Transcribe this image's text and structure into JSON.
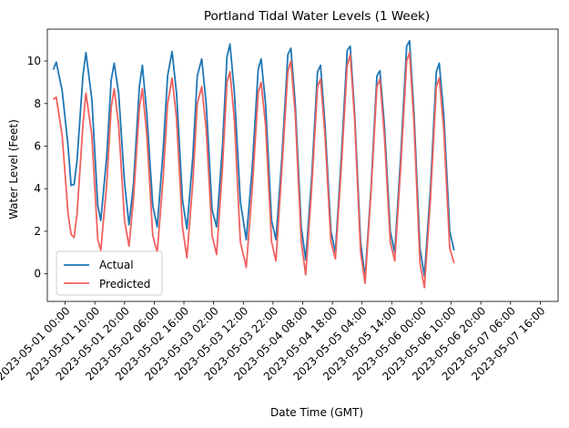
{
  "chart_data": {
    "type": "line",
    "title": "Portland Tidal Water Levels (1 Week)",
    "xlabel": "Date Time (GMT)",
    "ylabel": "Water Level (Feet)",
    "x_range": [
      "2023-04-30 18:00",
      "2023-05-07 22:00"
    ],
    "ylim": [
      -1.3,
      11.5
    ],
    "y_ticks": [
      0,
      2,
      4,
      6,
      8,
      10
    ],
    "x_ticks": [
      "2023-05-01 00:00",
      "2023-05-01 10:00",
      "2023-05-01 20:00",
      "2023-05-02 06:00",
      "2023-05-02 16:00",
      "2023-05-03 02:00",
      "2023-05-03 12:00",
      "2023-05-03 22:00",
      "2023-05-04 08:00",
      "2023-05-04 18:00",
      "2023-05-05 04:00",
      "2023-05-05 14:00",
      "2023-05-06 00:00",
      "2023-05-06 10:00",
      "2023-05-06 20:00",
      "2023-05-07 06:00",
      "2023-05-07 16:00"
    ],
    "grid": false,
    "legend": "lower-left",
    "series": [
      {
        "name": "Actual",
        "color": "#1f77b4",
        "points": [
          [
            "2023-04-30 20:00",
            9.6
          ],
          [
            "2023-04-30 21:00",
            9.95
          ],
          [
            "2023-04-30 23:00",
            8.6
          ],
          [
            "2023-05-01 01:00",
            6.0
          ],
          [
            "2023-05-01 02:00",
            4.15
          ],
          [
            "2023-05-01 03:00",
            4.2
          ],
          [
            "2023-05-01 04:00",
            5.3
          ],
          [
            "2023-05-01 06:00",
            9.3
          ],
          [
            "2023-05-01 07:00",
            10.4
          ],
          [
            "2023-05-01 09:00",
            8.2
          ],
          [
            "2023-05-01 11:00",
            3.2
          ],
          [
            "2023-05-01 12:00",
            2.5
          ],
          [
            "2023-05-01 14:00",
            5.5
          ],
          [
            "2023-05-01 15:30",
            9.1
          ],
          [
            "2023-05-01 16:30",
            9.9
          ],
          [
            "2023-05-01 18:00",
            8.5
          ],
          [
            "2023-05-01 20:00",
            4.3
          ],
          [
            "2023-05-01 21:30",
            2.3
          ],
          [
            "2023-05-01 23:00",
            4.2
          ],
          [
            "2023-05-02 01:00",
            8.8
          ],
          [
            "2023-05-02 02:00",
            9.8
          ],
          [
            "2023-05-02 03:30",
            7.5
          ],
          [
            "2023-05-02 05:30",
            3.2
          ],
          [
            "2023-05-02 07:00",
            2.2
          ],
          [
            "2023-05-02 09:00",
            5.8
          ],
          [
            "2023-05-02 10:30",
            9.3
          ],
          [
            "2023-05-02 12:00",
            10.45
          ],
          [
            "2023-05-02 13:30",
            8.5
          ],
          [
            "2023-05-02 15:30",
            3.5
          ],
          [
            "2023-05-02 17:00",
            2.1
          ],
          [
            "2023-05-02 19:00",
            5.5
          ],
          [
            "2023-05-02 20:30",
            9.3
          ],
          [
            "2023-05-02 22:00",
            10.1
          ],
          [
            "2023-05-02 23:30",
            8.0
          ],
          [
            "2023-05-03 01:30",
            3.0
          ],
          [
            "2023-05-03 03:00",
            2.2
          ],
          [
            "2023-05-03 05:00",
            6.0
          ],
          [
            "2023-05-03 06:30",
            10.2
          ],
          [
            "2023-05-03 07:30",
            10.8
          ],
          [
            "2023-05-03 09:00",
            8.5
          ],
          [
            "2023-05-03 11:00",
            3.4
          ],
          [
            "2023-05-03 13:00",
            1.6
          ],
          [
            "2023-05-03 15:00",
            5.0
          ],
          [
            "2023-05-03 17:00",
            9.6
          ],
          [
            "2023-05-03 18:00",
            10.1
          ],
          [
            "2023-05-03 19:30",
            8.0
          ],
          [
            "2023-05-03 21:30",
            2.5
          ],
          [
            "2023-05-03 23:00",
            1.6
          ],
          [
            "2023-05-04 01:00",
            5.5
          ],
          [
            "2023-05-04 03:00",
            10.3
          ],
          [
            "2023-05-04 04:00",
            10.6
          ],
          [
            "2023-05-04 05:30",
            8.0
          ],
          [
            "2023-05-04 07:30",
            2.2
          ],
          [
            "2023-05-04 09:00",
            0.65
          ],
          [
            "2023-05-04 11:00",
            4.5
          ],
          [
            "2023-05-04 13:00",
            9.5
          ],
          [
            "2023-05-04 14:00",
            9.8
          ],
          [
            "2023-05-04 15:30",
            7.0
          ],
          [
            "2023-05-04 17:30",
            2.0
          ],
          [
            "2023-05-04 19:00",
            1.0
          ],
          [
            "2023-05-04 21:00",
            5.5
          ],
          [
            "2023-05-04 23:00",
            10.5
          ],
          [
            "2023-05-05 00:00",
            10.7
          ],
          [
            "2023-05-05 01:30",
            7.5
          ],
          [
            "2023-05-05 03:30",
            1.5
          ],
          [
            "2023-05-05 05:00",
            -0.2
          ],
          [
            "2023-05-05 07:00",
            4.0
          ],
          [
            "2023-05-05 09:00",
            9.3
          ],
          [
            "2023-05-05 10:00",
            9.55
          ],
          [
            "2023-05-05 11:30",
            7.0
          ],
          [
            "2023-05-05 13:30",
            2.0
          ],
          [
            "2023-05-05 15:00",
            1.0
          ],
          [
            "2023-05-05 17:00",
            5.5
          ],
          [
            "2023-05-05 19:00",
            10.7
          ],
          [
            "2023-05-05 20:00",
            10.95
          ],
          [
            "2023-05-05 21:30",
            7.5
          ],
          [
            "2023-05-05 23:30",
            1.2
          ],
          [
            "2023-05-06 01:00",
            -0.1
          ],
          [
            "2023-05-06 03:00",
            4.0
          ],
          [
            "2023-05-06 05:00",
            9.5
          ],
          [
            "2023-05-06 06:00",
            9.9
          ],
          [
            "2023-05-06 07:30",
            7.5
          ],
          [
            "2023-05-06 09:30",
            2.0
          ],
          [
            "2023-05-06 11:00",
            1.1
          ]
        ]
      },
      {
        "name": "Predicted",
        "color": "#f0625e",
        "points": [
          [
            "2023-04-30 20:00",
            8.2
          ],
          [
            "2023-04-30 21:00",
            8.3
          ],
          [
            "2023-04-30 23:00",
            6.5
          ],
          [
            "2023-05-01 01:00",
            2.8
          ],
          [
            "2023-05-01 02:00",
            1.85
          ],
          [
            "2023-05-01 03:00",
            1.7
          ],
          [
            "2023-05-01 04:00",
            2.8
          ],
          [
            "2023-05-01 06:00",
            7.0
          ],
          [
            "2023-05-01 07:00",
            8.5
          ],
          [
            "2023-05-01 09:00",
            6.5
          ],
          [
            "2023-05-01 11:00",
            1.6
          ],
          [
            "2023-05-01 12:00",
            1.1
          ],
          [
            "2023-05-01 14:00",
            4.2
          ],
          [
            "2023-05-01 15:30",
            7.8
          ],
          [
            "2023-05-01 16:30",
            8.7
          ],
          [
            "2023-05-01 18:00",
            7.0
          ],
          [
            "2023-05-01 20:00",
            2.5
          ],
          [
            "2023-05-01 21:30",
            1.3
          ],
          [
            "2023-05-01 23:00",
            3.5
          ],
          [
            "2023-05-02 01:00",
            7.8
          ],
          [
            "2023-05-02 02:00",
            8.7
          ],
          [
            "2023-05-02 03:30",
            6.5
          ],
          [
            "2023-05-02 05:30",
            1.8
          ],
          [
            "2023-05-02 07:00",
            1.0
          ],
          [
            "2023-05-02 09:00",
            4.5
          ],
          [
            "2023-05-02 10:30",
            8.0
          ],
          [
            "2023-05-02 12:00",
            9.2
          ],
          [
            "2023-05-02 13:30",
            7.3
          ],
          [
            "2023-05-02 15:30",
            2.2
          ],
          [
            "2023-05-02 17:00",
            0.75
          ],
          [
            "2023-05-02 19:00",
            4.3
          ],
          [
            "2023-05-02 20:30",
            8.0
          ],
          [
            "2023-05-02 22:00",
            8.8
          ],
          [
            "2023-05-02 23:30",
            6.8
          ],
          [
            "2023-05-03 01:30",
            1.8
          ],
          [
            "2023-05-03 03:00",
            0.9
          ],
          [
            "2023-05-03 05:00",
            5.0
          ],
          [
            "2023-05-03 06:30",
            9.0
          ],
          [
            "2023-05-03 07:30",
            9.5
          ],
          [
            "2023-05-03 09:00",
            7.2
          ],
          [
            "2023-05-03 11:00",
            1.5
          ],
          [
            "2023-05-03 13:00",
            0.3
          ],
          [
            "2023-05-03 15:00",
            4.0
          ],
          [
            "2023-05-03 17:00",
            8.5
          ],
          [
            "2023-05-03 18:00",
            9.0
          ],
          [
            "2023-05-03 19:30",
            7.0
          ],
          [
            "2023-05-03 21:30",
            1.5
          ],
          [
            "2023-05-03 23:00",
            0.6
          ],
          [
            "2023-05-04 01:00",
            5.0
          ],
          [
            "2023-05-04 03:00",
            9.5
          ],
          [
            "2023-05-04 04:00",
            10.0
          ],
          [
            "2023-05-04 05:30",
            7.5
          ],
          [
            "2023-05-04 07:30",
            1.5
          ],
          [
            "2023-05-04 09:00",
            -0.05
          ],
          [
            "2023-05-04 11:00",
            4.0
          ],
          [
            "2023-05-04 13:00",
            8.8
          ],
          [
            "2023-05-04 14:00",
            9.15
          ],
          [
            "2023-05-04 15:30",
            6.5
          ],
          [
            "2023-05-04 17:30",
            1.5
          ],
          [
            "2023-05-04 19:00",
            0.7
          ],
          [
            "2023-05-04 21:00",
            5.0
          ],
          [
            "2023-05-04 23:00",
            9.8
          ],
          [
            "2023-05-05 00:00",
            10.3
          ],
          [
            "2023-05-05 01:30",
            7.2
          ],
          [
            "2023-05-05 03:30",
            1.0
          ],
          [
            "2023-05-05 05:00",
            -0.45
          ],
          [
            "2023-05-05 07:00",
            3.8
          ],
          [
            "2023-05-05 09:00",
            8.8
          ],
          [
            "2023-05-05 10:00",
            9.15
          ],
          [
            "2023-05-05 11:30",
            6.5
          ],
          [
            "2023-05-05 13:30",
            1.5
          ],
          [
            "2023-05-05 15:00",
            0.6
          ],
          [
            "2023-05-05 17:00",
            5.0
          ],
          [
            "2023-05-05 19:00",
            10.0
          ],
          [
            "2023-05-05 20:00",
            10.4
          ],
          [
            "2023-05-05 21:30",
            7.0
          ],
          [
            "2023-05-05 23:30",
            0.5
          ],
          [
            "2023-05-06 01:00",
            -0.65
          ],
          [
            "2023-05-06 03:00",
            3.5
          ],
          [
            "2023-05-06 05:00",
            8.8
          ],
          [
            "2023-05-06 06:00",
            9.2
          ],
          [
            "2023-05-06 07:30",
            6.8
          ],
          [
            "2023-05-06 09:30",
            1.2
          ],
          [
            "2023-05-06 11:00",
            0.5
          ]
        ]
      }
    ]
  }
}
